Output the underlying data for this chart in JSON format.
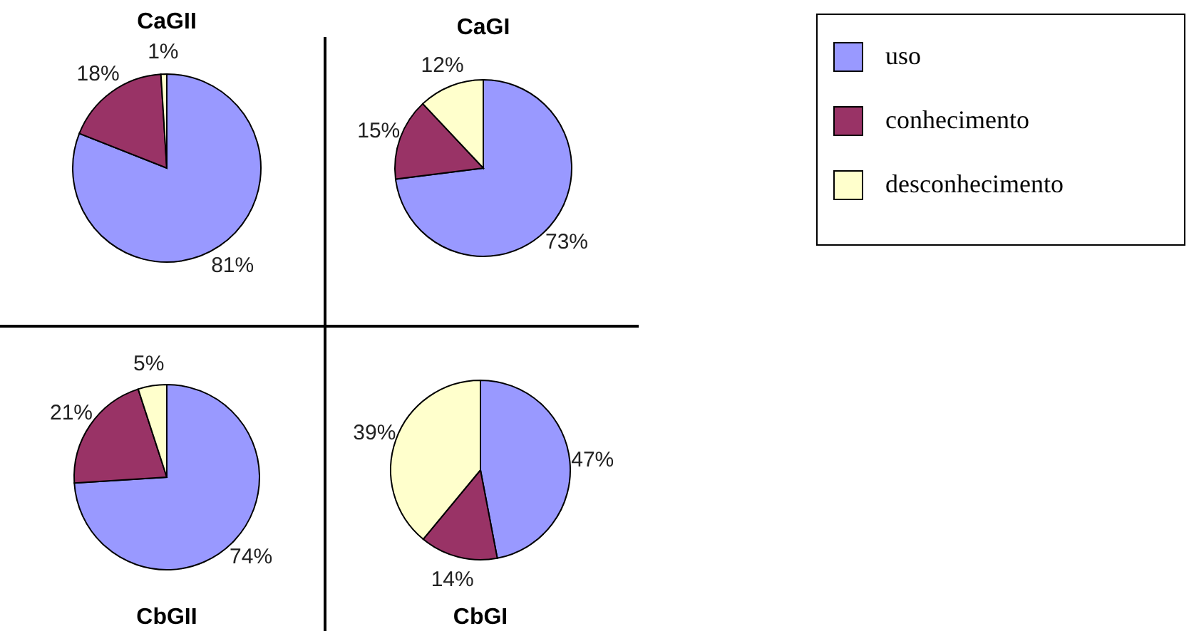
{
  "chart_data": [
    {
      "type": "pie",
      "title": "CaGII",
      "categories": [
        null,
        null,
        null
      ],
      "values": [
        81,
        18,
        1
      ],
      "colors": [
        "#9999ff",
        "#993366",
        "#ffffcc"
      ],
      "value_labels": [
        "81%",
        "18%",
        "1%"
      ]
    },
    {
      "type": "pie",
      "title": "CaGI",
      "categories": [
        "uso",
        "conhecimento",
        "desconhecimento"
      ],
      "values": [
        73,
        15,
        12
      ],
      "colors": [
        "#9999ff",
        "#993366",
        "#ffffcc"
      ],
      "value_labels": [
        "73%",
        "15%",
        "12%"
      ],
      "legend": "right"
    },
    {
      "type": "pie",
      "title": "CbGII",
      "categories": [
        null,
        null,
        null
      ],
      "values": [
        74,
        21,
        5
      ],
      "colors": [
        "#9999ff",
        "#993366",
        "#ffffcc"
      ],
      "value_labels": [
        "74%",
        "21%",
        "5%"
      ]
    },
    {
      "type": "pie",
      "title": "CbGI",
      "categories": [
        null,
        null,
        null
      ],
      "values": [
        47,
        14,
        39
      ],
      "colors": [
        "#9999ff",
        "#993366",
        "#ffffcc"
      ],
      "value_labels": [
        "47%",
        "14%",
        "39%"
      ]
    }
  ]
}
